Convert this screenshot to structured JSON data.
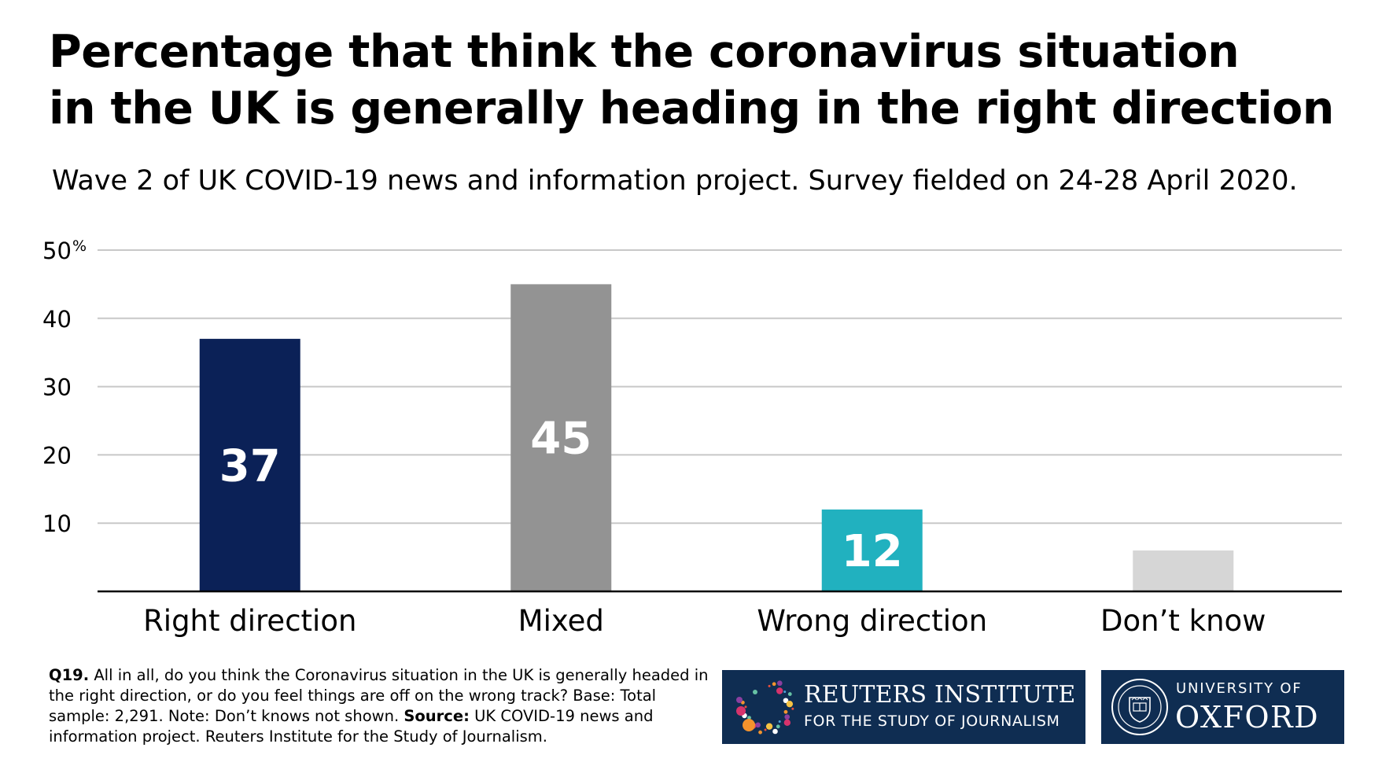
{
  "title_lines": [
    "Percentage that think the coronavirus situation",
    "in the UK is generally heading in the right direction"
  ],
  "subtitle": "Wave 2 of UK COVID-19 news and information project. Survey fielded on 24-28 April 2020.",
  "chart_data": {
    "type": "bar",
    "title": "Percentage that think the coronavirus situation in the UK is generally heading in the right direction",
    "categories": [
      "Right direction",
      "Mixed",
      "Wrong direction",
      "Don’t know"
    ],
    "values": [
      37,
      45,
      12,
      6
    ],
    "data_labels": [
      "37",
      "45",
      "12",
      ""
    ],
    "bar_colors": [
      "#0b2157",
      "#939393",
      "#21b1bf",
      "#d6d6d6"
    ],
    "label_colors": [
      "#ffffff",
      "#ffffff",
      "#ffffff",
      "#ffffff"
    ],
    "y_ticks": [
      "10",
      "20",
      "30",
      "40",
      "50"
    ],
    "y_unit": "%",
    "ylim": [
      0,
      50
    ],
    "grid": true,
    "legend": "none"
  },
  "footnote": {
    "q_label": "Q19.",
    "q_text": " All in all, do you think the Coronavirus situation in the UK is generally headed in the right direction, or do you feel things are off on the wrong track? Base: Total sample: 2,291. Note: Don’t knows not shown. ",
    "source_label": "Source:",
    "source_text": " UK COVID-19 news and information project. Reuters Institute for the Study of Journalism."
  },
  "logos": {
    "reuters_line1": "REUTERS INSTITUTE",
    "reuters_line2": "FOR THE STUDY OF JOURNALISM",
    "oxford_line1": "UNIVERSITY OF",
    "oxford_line2": "OXFORD",
    "logo_bg": "#0f2d52"
  }
}
